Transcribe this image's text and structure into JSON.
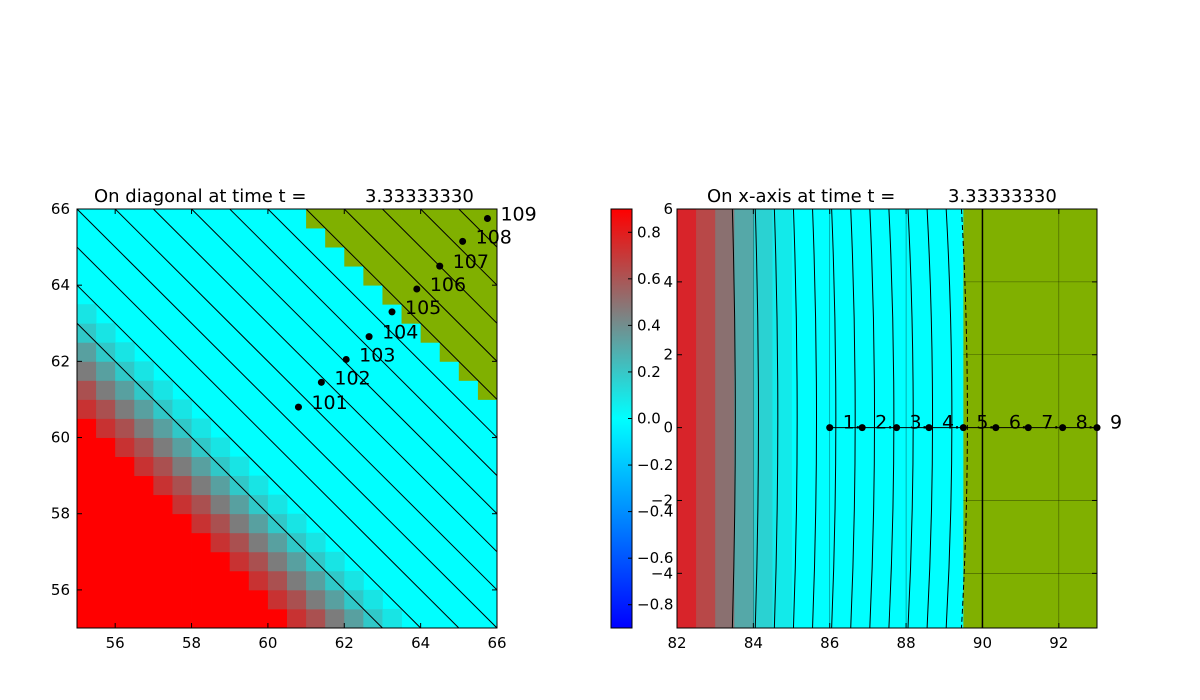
{
  "colors": {
    "background": "#ffffff",
    "red": "#ff0000",
    "cyan": "#00ffff",
    "green": "#80b000",
    "dot": "#000000",
    "contour": "#000000"
  },
  "chart_data": [
    {
      "type": "heatmap",
      "title_prefix": "On diagonal at time t =",
      "title_value": "3.33333330",
      "xlabel": "",
      "ylabel": "",
      "xlim": [
        55,
        66
      ],
      "ylim": [
        55,
        66
      ],
      "x_ticks": [
        "56",
        "58",
        "60",
        "62",
        "64",
        "66"
      ],
      "y_ticks": [
        "56",
        "58",
        "60",
        "62",
        "64",
        "66"
      ],
      "grid": false,
      "contour_lines": "diagonal lines x + y = const",
      "points": [
        {
          "label": "101",
          "x": 60.8,
          "y": 60.8
        },
        {
          "label": "102",
          "x": 61.4,
          "y": 61.45
        },
        {
          "label": "103",
          "x": 62.05,
          "y": 62.05
        },
        {
          "label": "104",
          "x": 62.65,
          "y": 62.65
        },
        {
          "label": "105",
          "x": 63.25,
          "y": 63.3
        },
        {
          "label": "106",
          "x": 63.9,
          "y": 63.9
        },
        {
          "label": "107",
          "x": 64.5,
          "y": 64.5
        },
        {
          "label": "108",
          "x": 65.1,
          "y": 65.15
        },
        {
          "label": "109",
          "x": 65.75,
          "y": 65.75
        }
      ]
    },
    {
      "type": "heatmap",
      "title_prefix": "On x-axis at time t =",
      "title_value": "3.33333330",
      "xlabel": "",
      "ylabel": "",
      "xlim": [
        82,
        93
      ],
      "ylim": [
        -5.5,
        6
      ],
      "x_ticks": [
        "82",
        "84",
        "86",
        "88",
        "90",
        "92"
      ],
      "y_ticks": [
        "−4",
        "−2",
        "0",
        "2",
        "4",
        "6"
      ],
      "grid": true,
      "contour_lines": "near-vertical lines x = const",
      "points": [
        {
          "label": "1",
          "x": 86.0,
          "y": 0
        },
        {
          "label": "2",
          "x": 86.85,
          "y": 0
        },
        {
          "label": "3",
          "x": 87.75,
          "y": 0
        },
        {
          "label": "4",
          "x": 88.6,
          "y": 0
        },
        {
          "label": "5",
          "x": 89.5,
          "y": 0
        },
        {
          "label": "6",
          "x": 90.35,
          "y": 0
        },
        {
          "label": "7",
          "x": 91.2,
          "y": 0
        },
        {
          "label": "8",
          "x": 92.1,
          "y": 0
        },
        {
          "label": "9",
          "x": 93.0,
          "y": 0
        }
      ]
    }
  ],
  "colorbar": {
    "range": [
      -0.9,
      0.9
    ],
    "ticks": [
      "−0.8",
      "−0.6",
      "−0.4",
      "−0.2",
      "0.0",
      "0.2",
      "0.4",
      "0.6",
      "0.8"
    ]
  }
}
